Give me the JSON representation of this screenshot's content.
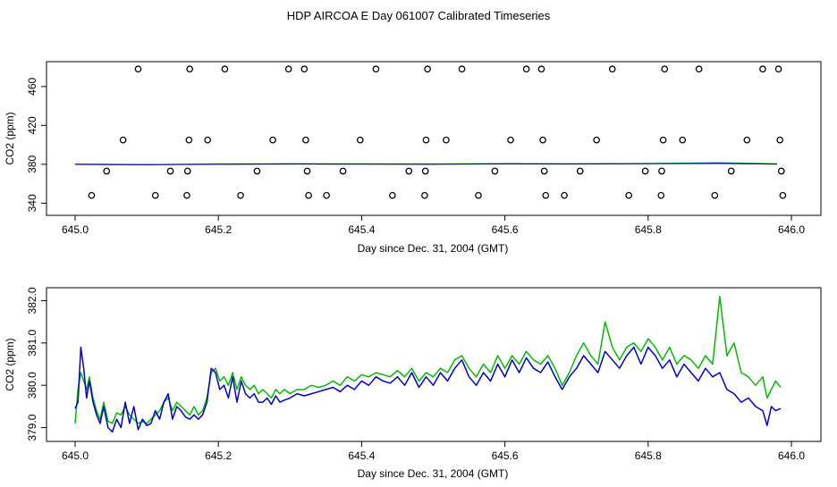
{
  "title": "HDP AIRCOA E  Day 061007  Calibrated Timeseries",
  "colors": {
    "series_a": "#0000cc",
    "series_b": "#00bb00",
    "points": "#000000",
    "axis": "#000000"
  },
  "chart_data": [
    {
      "type": "scatter",
      "xlabel": "Day since Dec. 31, 2004 (GMT)",
      "ylabel": "CO2 (ppm)",
      "xlim": [
        645.0,
        646.0
      ],
      "ylim": [
        333,
        481
      ],
      "x_ticks": [
        "645.0",
        "645.2",
        "645.4",
        "645.6",
        "645.8",
        "646.0"
      ],
      "y_ticks": [
        "340",
        "380",
        "420",
        "460"
      ],
      "grid": false,
      "points": [
        {
          "x": 645.023,
          "y": 348
        },
        {
          "x": 645.044,
          "y": 373
        },
        {
          "x": 645.067,
          "y": 405
        },
        {
          "x": 645.088,
          "y": 478
        },
        {
          "x": 645.112,
          "y": 348
        },
        {
          "x": 645.133,
          "y": 373
        },
        {
          "x": 645.156,
          "y": 348
        },
        {
          "x": 645.157,
          "y": 373
        },
        {
          "x": 645.159,
          "y": 405
        },
        {
          "x": 645.16,
          "y": 478
        },
        {
          "x": 645.185,
          "y": 405
        },
        {
          "x": 645.209,
          "y": 478
        },
        {
          "x": 645.231,
          "y": 348
        },
        {
          "x": 645.254,
          "y": 373
        },
        {
          "x": 645.276,
          "y": 405
        },
        {
          "x": 645.298,
          "y": 478
        },
        {
          "x": 645.32,
          "y": 478
        },
        {
          "x": 645.322,
          "y": 405
        },
        {
          "x": 645.324,
          "y": 373
        },
        {
          "x": 645.326,
          "y": 348
        },
        {
          "x": 645.351,
          "y": 348
        },
        {
          "x": 645.374,
          "y": 373
        },
        {
          "x": 645.398,
          "y": 405
        },
        {
          "x": 645.42,
          "y": 478
        },
        {
          "x": 645.443,
          "y": 348
        },
        {
          "x": 645.466,
          "y": 373
        },
        {
          "x": 645.488,
          "y": 348
        },
        {
          "x": 645.489,
          "y": 373
        },
        {
          "x": 645.49,
          "y": 405
        },
        {
          "x": 645.492,
          "y": 478
        },
        {
          "x": 645.518,
          "y": 405
        },
        {
          "x": 645.54,
          "y": 478
        },
        {
          "x": 645.563,
          "y": 348
        },
        {
          "x": 645.586,
          "y": 373
        },
        {
          "x": 645.608,
          "y": 405
        },
        {
          "x": 645.63,
          "y": 478
        },
        {
          "x": 645.651,
          "y": 478
        },
        {
          "x": 645.653,
          "y": 405
        },
        {
          "x": 645.655,
          "y": 373
        },
        {
          "x": 645.657,
          "y": 348
        },
        {
          "x": 645.683,
          "y": 348
        },
        {
          "x": 645.705,
          "y": 373
        },
        {
          "x": 645.728,
          "y": 405
        },
        {
          "x": 645.75,
          "y": 478
        },
        {
          "x": 645.773,
          "y": 348
        },
        {
          "x": 645.796,
          "y": 373
        },
        {
          "x": 645.818,
          "y": 348
        },
        {
          "x": 645.819,
          "y": 373
        },
        {
          "x": 645.821,
          "y": 405
        },
        {
          "x": 645.823,
          "y": 478
        },
        {
          "x": 645.848,
          "y": 405
        },
        {
          "x": 645.871,
          "y": 478
        },
        {
          "x": 645.893,
          "y": 348
        },
        {
          "x": 645.916,
          "y": 373
        },
        {
          "x": 645.938,
          "y": 405
        },
        {
          "x": 645.96,
          "y": 478
        },
        {
          "x": 645.982,
          "y": 478
        },
        {
          "x": 645.984,
          "y": 405
        },
        {
          "x": 645.986,
          "y": 373
        },
        {
          "x": 645.988,
          "y": 348
        }
      ],
      "lines": [
        {
          "x": [
            645.0,
            645.1,
            645.2,
            645.3,
            645.4,
            645.5,
            645.6,
            645.7,
            645.8,
            645.9,
            645.98
          ],
          "y": [
            380,
            379.6,
            380.1,
            380.3,
            380.2,
            380.1,
            380.4,
            380.3,
            380.6,
            380.9,
            380.2
          ]
        },
        {
          "x": [
            645.0,
            645.1,
            645.2,
            645.3,
            645.4,
            645.5,
            645.6,
            645.7,
            645.8,
            645.9,
            645.98
          ],
          "y": [
            380.1,
            379.7,
            380.3,
            380.5,
            380.4,
            380.3,
            380.6,
            380.5,
            380.8,
            381.6,
            380.5
          ]
        }
      ]
    },
    {
      "type": "line",
      "xlabel": "Day since Dec. 31, 2004 (GMT)",
      "ylabel": "CO2 (ppm)",
      "xlim": [
        645.0,
        646.0
      ],
      "ylim": [
        378.8,
        382.2
      ],
      "x_ticks": [
        "645.0",
        "645.2",
        "645.4",
        "645.6",
        "645.8",
        "646.0"
      ],
      "y_ticks": [
        "379.0",
        "380.0",
        "381.0",
        "382.0"
      ],
      "grid": false,
      "series": [
        {
          "color_key": "series_a",
          "x": [
            645.0,
            645.004,
            645.008,
            645.012,
            645.016,
            645.02,
            645.025,
            645.03,
            645.035,
            645.04,
            645.046,
            645.052,
            645.058,
            645.064,
            645.07,
            645.076,
            645.082,
            645.088,
            645.094,
            645.1,
            645.106,
            645.112,
            645.118,
            645.124,
            645.13,
            645.136,
            645.142,
            645.148,
            645.154,
            645.16,
            645.166,
            645.172,
            645.178,
            645.184,
            645.19,
            645.196,
            645.202,
            645.208,
            645.214,
            645.22,
            645.226,
            645.232,
            645.238,
            645.244,
            645.25,
            645.256,
            645.262,
            645.268,
            645.274,
            645.28,
            645.286,
            645.292,
            645.3,
            645.31,
            645.32,
            645.33,
            645.34,
            645.35,
            645.36,
            645.37,
            645.38,
            645.39,
            645.4,
            645.41,
            645.42,
            645.43,
            645.44,
            645.45,
            645.46,
            645.47,
            645.48,
            645.49,
            645.5,
            645.51,
            645.52,
            645.53,
            645.54,
            645.55,
            645.56,
            645.57,
            645.58,
            645.59,
            645.6,
            645.61,
            645.62,
            645.63,
            645.64,
            645.65,
            645.66,
            645.67,
            645.68,
            645.69,
            645.7,
            645.71,
            645.72,
            645.73,
            645.74,
            645.75,
            645.76,
            645.77,
            645.78,
            645.79,
            645.8,
            645.81,
            645.82,
            645.83,
            645.84,
            645.85,
            645.86,
            645.87,
            645.88,
            645.89,
            645.9,
            645.91,
            645.92,
            645.93,
            645.94,
            645.95,
            645.96,
            645.966,
            645.972,
            645.978,
            645.985
          ],
          "y": [
            379.45,
            379.6,
            380.9,
            380.4,
            379.7,
            380.1,
            379.6,
            379.3,
            379.1,
            379.5,
            379.0,
            378.9,
            379.2,
            379.0,
            379.6,
            379.1,
            379.5,
            378.95,
            379.2,
            379.05,
            379.1,
            379.4,
            379.2,
            379.6,
            379.8,
            379.2,
            379.5,
            379.4,
            379.25,
            379.2,
            379.3,
            379.2,
            379.3,
            379.6,
            380.4,
            380.3,
            379.9,
            380.0,
            379.7,
            380.2,
            379.6,
            380.1,
            379.8,
            379.7,
            379.8,
            379.6,
            379.6,
            379.7,
            379.55,
            379.75,
            379.6,
            379.65,
            379.7,
            379.8,
            379.75,
            379.8,
            379.85,
            379.9,
            379.95,
            379.85,
            380.0,
            379.9,
            380.1,
            380.0,
            380.2,
            380.1,
            380.05,
            380.2,
            380.0,
            380.3,
            379.95,
            380.2,
            380.0,
            380.3,
            380.1,
            380.4,
            380.6,
            380.2,
            380.0,
            380.3,
            380.1,
            380.5,
            380.2,
            380.6,
            380.3,
            380.65,
            380.4,
            380.3,
            380.55,
            380.2,
            379.9,
            380.2,
            380.4,
            380.7,
            380.5,
            380.3,
            380.8,
            380.6,
            380.4,
            380.7,
            380.9,
            380.5,
            380.9,
            380.7,
            380.4,
            380.6,
            380.2,
            380.5,
            380.3,
            380.1,
            380.4,
            380.2,
            380.3,
            379.9,
            379.8,
            379.6,
            379.7,
            379.5,
            379.4,
            379.05,
            379.5,
            379.4,
            379.45
          ],
          "name": ""
        },
        {
          "color_key": "series_b",
          "x": [
            645.0,
            645.004,
            645.008,
            645.012,
            645.016,
            645.02,
            645.025,
            645.03,
            645.035,
            645.04,
            645.046,
            645.052,
            645.058,
            645.064,
            645.07,
            645.076,
            645.082,
            645.088,
            645.094,
            645.1,
            645.106,
            645.112,
            645.118,
            645.124,
            645.13,
            645.136,
            645.142,
            645.148,
            645.154,
            645.16,
            645.166,
            645.172,
            645.178,
            645.184,
            645.19,
            645.196,
            645.202,
            645.208,
            645.214,
            645.22,
            645.226,
            645.232,
            645.238,
            645.244,
            645.25,
            645.256,
            645.262,
            645.268,
            645.274,
            645.28,
            645.286,
            645.292,
            645.3,
            645.31,
            645.32,
            645.33,
            645.34,
            645.35,
            645.36,
            645.37,
            645.38,
            645.39,
            645.4,
            645.41,
            645.42,
            645.43,
            645.44,
            645.45,
            645.46,
            645.47,
            645.48,
            645.49,
            645.5,
            645.51,
            645.52,
            645.53,
            645.54,
            645.55,
            645.56,
            645.57,
            645.58,
            645.59,
            645.6,
            645.61,
            645.62,
            645.63,
            645.64,
            645.65,
            645.66,
            645.67,
            645.68,
            645.69,
            645.7,
            645.71,
            645.72,
            645.73,
            645.74,
            645.75,
            645.76,
            645.77,
            645.78,
            645.79,
            645.8,
            645.81,
            645.82,
            645.83,
            645.84,
            645.85,
            645.86,
            645.87,
            645.88,
            645.89,
            645.9,
            645.91,
            645.92,
            645.93,
            645.94,
            645.95,
            645.96,
            645.966,
            645.972,
            645.978,
            645.985
          ],
          "y": [
            379.1,
            379.9,
            380.3,
            380.1,
            379.9,
            380.2,
            379.7,
            379.4,
            379.2,
            379.6,
            379.15,
            379.1,
            379.35,
            379.3,
            379.5,
            379.3,
            379.2,
            379.1,
            379.15,
            379.1,
            379.2,
            379.3,
            379.4,
            379.6,
            379.7,
            379.4,
            379.6,
            379.5,
            379.4,
            379.3,
            379.5,
            379.3,
            379.4,
            379.7,
            380.3,
            380.4,
            380.1,
            380.2,
            380.0,
            380.3,
            379.9,
            380.2,
            380.0,
            379.9,
            380.0,
            379.8,
            379.9,
            379.8,
            379.7,
            379.9,
            379.8,
            379.9,
            379.8,
            379.9,
            379.9,
            380.0,
            379.95,
            380.0,
            380.1,
            380.0,
            380.2,
            380.1,
            380.25,
            380.2,
            380.3,
            380.25,
            380.2,
            380.35,
            380.2,
            380.4,
            380.1,
            380.3,
            380.2,
            380.4,
            380.3,
            380.6,
            380.7,
            380.4,
            380.2,
            380.5,
            380.3,
            380.7,
            380.4,
            380.7,
            380.5,
            380.8,
            380.6,
            380.5,
            380.7,
            380.4,
            380.0,
            380.3,
            380.7,
            381.0,
            380.7,
            380.5,
            381.5,
            380.9,
            380.6,
            380.9,
            381.0,
            380.8,
            381.1,
            380.9,
            380.6,
            380.9,
            380.5,
            380.7,
            380.6,
            380.4,
            380.7,
            380.5,
            382.1,
            380.7,
            381.0,
            380.3,
            380.2,
            380.0,
            380.2,
            379.7,
            379.9,
            380.1,
            379.95
          ],
          "name": ""
        }
      ]
    }
  ]
}
